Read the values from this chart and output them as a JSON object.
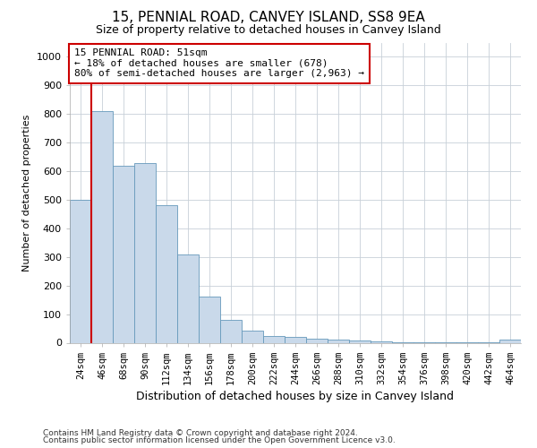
{
  "title": "15, PENNIAL ROAD, CANVEY ISLAND, SS8 9EA",
  "subtitle": "Size of property relative to detached houses in Canvey Island",
  "xlabel": "Distribution of detached houses by size in Canvey Island",
  "ylabel": "Number of detached properties",
  "footnote1": "Contains HM Land Registry data © Crown copyright and database right 2024.",
  "footnote2": "Contains public sector information licensed under the Open Government Licence v3.0.",
  "annotation_title": "15 PENNIAL ROAD: 51sqm",
  "annotation_line1": "← 18% of detached houses are smaller (678)",
  "annotation_line2": "80% of semi-detached houses are larger (2,963) →",
  "bar_color": "#c9d9ea",
  "bar_edge_color": "#6699bb",
  "vline_color": "#cc0000",
  "annotation_box_edgecolor": "#cc0000",
  "background_color": "#ffffff",
  "grid_color": "#c8d0d8",
  "categories": [
    "24sqm",
    "46sqm",
    "68sqm",
    "90sqm",
    "112sqm",
    "134sqm",
    "156sqm",
    "178sqm",
    "200sqm",
    "222sqm",
    "244sqm",
    "266sqm",
    "288sqm",
    "310sqm",
    "332sqm",
    "354sqm",
    "376sqm",
    "398sqm",
    "420sqm",
    "442sqm",
    "464sqm"
  ],
  "values": [
    500,
    810,
    620,
    630,
    480,
    310,
    160,
    80,
    43,
    22,
    20,
    15,
    10,
    8,
    5,
    3,
    2,
    2,
    1,
    1,
    10
  ],
  "ylim": [
    0,
    1050
  ],
  "yticks": [
    0,
    100,
    200,
    300,
    400,
    500,
    600,
    700,
    800,
    900,
    1000
  ],
  "vline_x": 0.5,
  "title_fontsize": 11,
  "subtitle_fontsize": 9,
  "ylabel_fontsize": 8,
  "xlabel_fontsize": 9,
  "tick_fontsize": 8,
  "xtick_fontsize": 7.5
}
